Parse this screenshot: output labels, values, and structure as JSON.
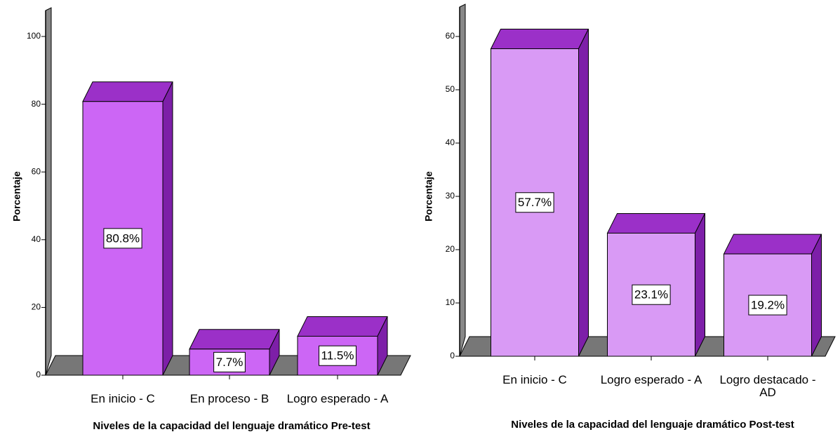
{
  "chart_data": [
    {
      "type": "bar3d",
      "x_label": "Niveles de la capacidad del lenguaje dramático Pre-test",
      "y_label": "Porcentaje",
      "categories": [
        "En inicio - C",
        "En proceso - B",
        "Logro esperado - A"
      ],
      "values": [
        80.8,
        7.7,
        11.5
      ],
      "value_labels": [
        "80.8%",
        "7.7%",
        "11.5%"
      ],
      "color": "#cc66f5",
      "ylim": [
        0,
        100
      ],
      "yticks": [
        0,
        20,
        40,
        60,
        80,
        100
      ]
    },
    {
      "type": "bar3d",
      "x_label": "Niveles de la capacidad del lenguaje dramático Post-test",
      "y_label": "Porcentaje",
      "categories": [
        "En inicio - C",
        "Logro esperado - A",
        "Logro destacado - AD"
      ],
      "values": [
        57.7,
        23.1,
        19.2
      ],
      "value_labels": [
        "57.7%",
        "23.1%",
        "19.2%"
      ],
      "color": "#d99af5",
      "ylim": [
        0,
        60
      ],
      "yticks": [
        0,
        10,
        20,
        30,
        40,
        50,
        60
      ]
    }
  ]
}
